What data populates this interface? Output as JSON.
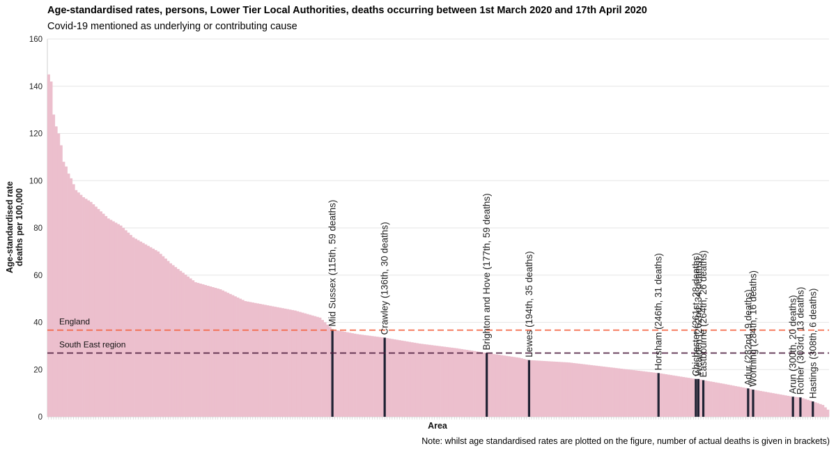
{
  "title": "Age-standardised rates, persons, Lower Tier Local Authorities, deaths occurring between 1st March 2020 and 17th April 2020",
  "subtitle": "Covid-19 mentioned as underlying or contributing cause",
  "note": "Note: whilst age standardised rates are plotted on the figure, number of actual deaths is given in brackets)",
  "colors": {
    "bar": "#ecbfcd",
    "highlight": "#1f2233",
    "england_line": "#f4603d",
    "south_east_line": "#4a1a3c",
    "grid": "#e6e6e6"
  },
  "chart_data": {
    "type": "bar",
    "title": "Age-standardised rates, persons, Lower Tier Local Authorities, deaths occurring between 1st March 2020 and 17th April 2020",
    "subtitle": "Covid-19 mentioned as underlying or contributing cause",
    "xlabel": "Area",
    "ylabel": [
      "Age-standardised rate",
      "deaths per 100,000"
    ],
    "ylim": [
      0,
      160
    ],
    "yticks": [
      0,
      20,
      40,
      60,
      80,
      100,
      120,
      140,
      160
    ],
    "n_areas": 314,
    "grid": true,
    "rate_profile": [
      [
        1,
        145
      ],
      [
        2,
        142
      ],
      [
        3,
        128
      ],
      [
        4,
        123
      ],
      [
        5,
        120
      ],
      [
        6,
        115
      ],
      [
        7,
        108
      ],
      [
        8,
        106
      ],
      [
        9,
        103
      ],
      [
        10,
        101
      ],
      [
        12,
        96
      ],
      [
        15,
        93
      ],
      [
        18,
        91
      ],
      [
        20,
        89
      ],
      [
        25,
        84
      ],
      [
        30,
        81
      ],
      [
        35,
        76
      ],
      [
        40,
        73
      ],
      [
        45,
        70
      ],
      [
        50,
        65
      ],
      [
        55,
        61
      ],
      [
        60,
        57
      ],
      [
        70,
        54
      ],
      [
        80,
        49
      ],
      [
        90,
        47
      ],
      [
        100,
        45
      ],
      [
        105,
        43.5
      ],
      [
        110,
        42
      ],
      [
        115,
        37
      ],
      [
        125,
        35
      ],
      [
        136,
        33.5
      ],
      [
        150,
        31
      ],
      [
        165,
        29
      ],
      [
        177,
        27
      ],
      [
        190,
        25
      ],
      [
        194,
        24
      ],
      [
        210,
        23
      ],
      [
        230,
        20.5
      ],
      [
        246,
        18.5
      ],
      [
        255,
        17
      ],
      [
        261,
        16
      ],
      [
        262,
        16
      ],
      [
        264,
        15.5
      ],
      [
        272,
        14
      ],
      [
        282,
        12
      ],
      [
        284,
        11.5
      ],
      [
        292,
        10
      ],
      [
        300,
        8.5
      ],
      [
        303,
        8.2
      ],
      [
        308,
        6.5
      ],
      [
        312,
        5
      ],
      [
        314,
        3
      ]
    ],
    "reference_lines": [
      {
        "name": "England",
        "value": 36.7
      },
      {
        "name": "South East region",
        "value": 27
      }
    ],
    "highlighted": [
      {
        "label": "Mid Sussex (115th, 59 deaths)",
        "rank": 115,
        "value": 37
      },
      {
        "label": "Crawley (136th, 30 deaths)",
        "rank": 136,
        "value": 33.5
      },
      {
        "label": "Brighton and Hove (177th, 59 deaths)",
        "rank": 177,
        "value": 27
      },
      {
        "label": "Lewes (194th, 35 deaths)",
        "rank": 194,
        "value": 24
      },
      {
        "label": "Horsham (246th, 31 deaths)",
        "rank": 246,
        "value": 18.5
      },
      {
        "label": "Chichester (261st, 28 deaths)",
        "rank": 261,
        "value": 16
      },
      {
        "label": "Wealden (262nd, 34 deaths)",
        "rank": 262,
        "value": 16
      },
      {
        "label": "Eastbourne (264th, 26 deaths)",
        "rank": 264,
        "value": 15.5
      },
      {
        "label": "Adur (282nd, 9 deaths)",
        "rank": 282,
        "value": 12
      },
      {
        "label": "Worthing (284th, 16 deaths)",
        "rank": 284,
        "value": 11.5
      },
      {
        "label": "Arun (300th, 20 deaths)",
        "rank": 300,
        "value": 8.5
      },
      {
        "label": "Rother (303rd, 13 deaths)",
        "rank": 303,
        "value": 8.2
      },
      {
        "label": "Hastings (308th, 6 deaths)",
        "rank": 308,
        "value": 6.5
      }
    ]
  }
}
